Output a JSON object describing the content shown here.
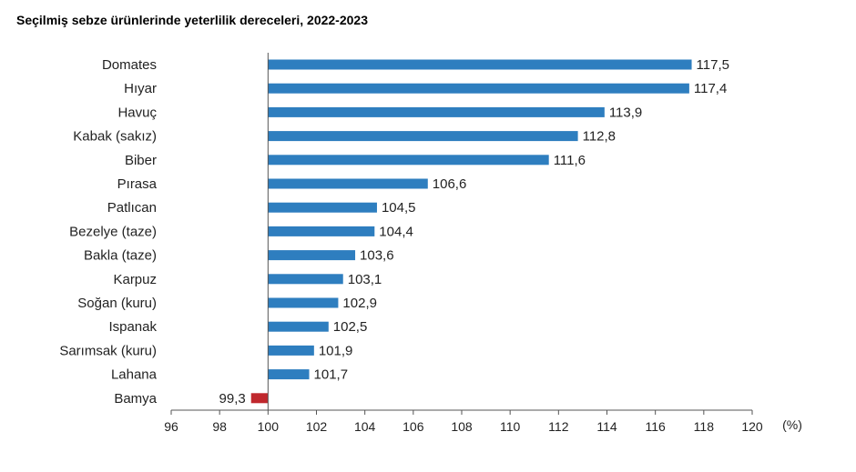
{
  "chart_data": {
    "type": "bar",
    "orientation": "horizontal",
    "title": "Seçilmiş sebze ürünlerinde yeterlilik dereceleri, 2022-2023",
    "xlabel": "",
    "ylabel": "",
    "unit_label": "(%)",
    "categories": [
      "Domates",
      "Hıyar",
      "Havuç",
      "Kabak (sakız)",
      "Biber",
      "Pırasa",
      "Patlıcan",
      "Bezelye (taze)",
      "Bakla (taze)",
      "Karpuz",
      "Soğan (kuru)",
      "Ispanak",
      "Sarımsak (kuru)",
      "Lahana",
      "Bamya"
    ],
    "values": [
      117.5,
      117.4,
      113.9,
      112.8,
      111.6,
      106.6,
      104.5,
      104.4,
      103.6,
      103.1,
      102.9,
      102.5,
      101.9,
      101.7,
      99.3
    ],
    "value_labels": [
      "117,5",
      "117,4",
      "113,9",
      "112,8",
      "111,6",
      "106,6",
      "104,5",
      "104,4",
      "103,6",
      "103,1",
      "102,9",
      "102,5",
      "101,9",
      "101,7",
      "99,3"
    ],
    "baseline": 100,
    "xlim": [
      96,
      120
    ],
    "xticks": [
      96,
      98,
      100,
      102,
      104,
      106,
      108,
      110,
      112,
      114,
      116,
      118,
      120
    ],
    "grid": false,
    "legend": "none",
    "colors": {
      "above_baseline": "#2e7ebf",
      "below_baseline": "#c0282d",
      "axis": "#555555",
      "text": "#222222"
    }
  }
}
